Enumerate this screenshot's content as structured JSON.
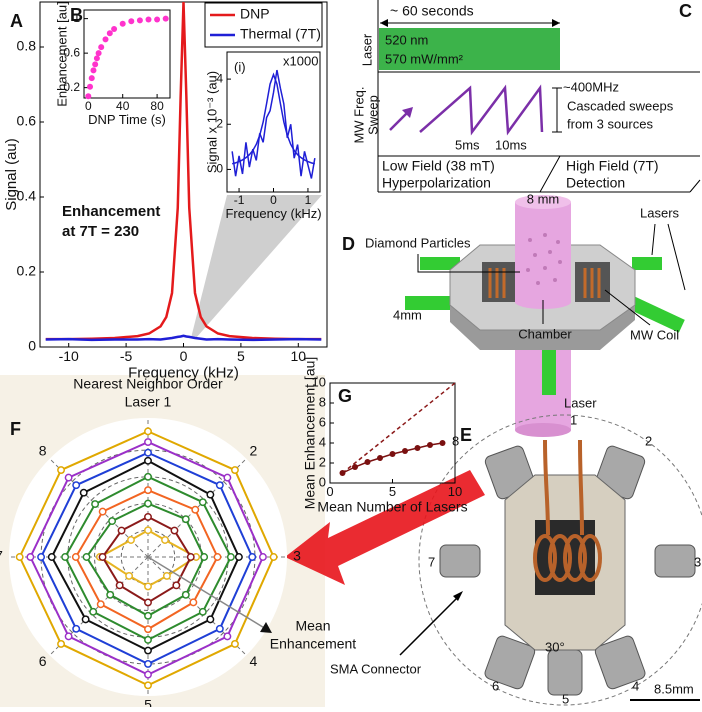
{
  "chart_data": [
    {
      "type": "line",
      "xlabel": "Frequency (kHz)",
      "ylabel": "Signal (au)",
      "x": [
        -12,
        -10,
        -8,
        -6,
        -4,
        -3,
        -2,
        -1.5,
        -1,
        -0.5,
        -0.25,
        0,
        0.25,
        0.5,
        1,
        1.5,
        2,
        3,
        4,
        6,
        8,
        10,
        12
      ],
      "series": [
        {
          "name": "DNP",
          "color": "#e41a1c",
          "values": [
            0.021,
            0.021,
            0.022,
            0.024,
            0.029,
            0.036,
            0.055,
            0.08,
            0.144,
            0.371,
            0.667,
            0.92,
            0.667,
            0.371,
            0.144,
            0.08,
            0.055,
            0.036,
            0.029,
            0.024,
            0.022,
            0.021,
            0.021
          ]
        },
        {
          "name": "Thermal (7T)",
          "color": "#1f1fd6",
          "values": [
            0.02,
            0.021,
            0.019,
            0.02,
            0.02,
            0.021,
            0.02,
            0.022,
            0.024,
            0.027,
            0.028,
            0.03,
            0.028,
            0.027,
            0.024,
            0.022,
            0.02,
            0.021,
            0.02,
            0.019,
            0.02,
            0.021,
            0.02
          ]
        }
      ],
      "xlim": [
        -12.5,
        12.5
      ],
      "xticks": [
        -10,
        -5,
        0,
        5,
        10
      ],
      "ylim": [
        0,
        0.92
      ],
      "yticks": [
        0,
        0.2,
        0.4,
        0.6,
        0.8
      ],
      "legend": true,
      "annotations": [
        "Enhancement",
        "at 7T = 230"
      ]
    },
    {
      "type": "scatter",
      "xlabel": "DNP Time (s)",
      "ylabel": "Enhancement [au]",
      "x": [
        0,
        2,
        4,
        6,
        8,
        10,
        12,
        15,
        20,
        25,
        30,
        40,
        50,
        60,
        70,
        80,
        90
      ],
      "series": [
        {
          "color": "#ff33cc",
          "values": [
            0.1,
            0.21,
            0.31,
            0.4,
            0.47,
            0.54,
            0.6,
            0.67,
            0.76,
            0.83,
            0.88,
            0.94,
            0.97,
            0.98,
            0.99,
            0.99,
            1.0
          ]
        }
      ],
      "xlim": [
        -5,
        95
      ],
      "xticks": [
        0,
        40,
        80
      ],
      "ylim": [
        0.08,
        1.1
      ],
      "yticks": [
        0.2,
        0.6,
        1
      ]
    },
    {
      "type": "line",
      "xlabel": "Frequency (kHz)",
      "ylabel": "Signal x 10⁻³ (au)",
      "x": [
        -1.2,
        -1.1,
        -1.0,
        -0.9,
        -0.8,
        -0.7,
        -0.6,
        -0.5,
        -0.4,
        -0.3,
        -0.2,
        -0.1,
        0,
        0.1,
        0.2,
        0.3,
        0.4,
        0.5,
        0.6,
        0.7,
        0.8,
        0.9,
        1.0,
        1.1,
        1.2
      ],
      "series": [
        {
          "color": "#1f1fd6",
          "values": [
            0.8,
            -0.3,
            0.6,
            -0.2,
            1.2,
            0.1,
            0.9,
            0.4,
            1.6,
            1.2,
            2.3,
            2.6,
            3.4,
            4.4,
            3.6,
            2.9,
            1.4,
            2.0,
            0.5,
            1.1,
            -0.3,
            0.8,
            0.2,
            -0.4,
            0.5
          ]
        },
        {
          "color": "#1f1fd6",
          "values": [
            0.25,
            0.29,
            0.35,
            0.42,
            0.52,
            0.65,
            0.84,
            1.11,
            1.51,
            2.1,
            2.92,
            3.78,
            4.2,
            3.78,
            2.92,
            2.1,
            1.51,
            1.11,
            0.84,
            0.65,
            0.52,
            0.42,
            0.35,
            0.29,
            0.25
          ]
        }
      ],
      "xlim": [
        -1.35,
        1.35
      ],
      "xticks": [
        -1,
        0,
        1
      ],
      "ylim": [
        -1,
        5.2
      ],
      "yticks": [
        0,
        2,
        4
      ],
      "annotations": [
        "(i)",
        "x1000"
      ]
    },
    {
      "type": "line",
      "xlabel": "Mean Number of Lasers",
      "ylabel": "Mean Enhancement [au]",
      "series": [
        {
          "color": "#8b1a1a",
          "dashed": true,
          "x": [
            1,
            10
          ],
          "values": [
            1,
            10
          ]
        },
        {
          "color": "#7a1010",
          "markers": true,
          "x": [
            1,
            2,
            3,
            4,
            5,
            6,
            7,
            8,
            9
          ],
          "values": [
            1,
            1.6,
            2.1,
            2.5,
            2.9,
            3.2,
            3.5,
            3.8,
            4.0
          ]
        }
      ],
      "xlim": [
        0,
        10
      ],
      "xticks": [
        0,
        5,
        10
      ],
      "ylim": [
        0,
        10
      ],
      "yticks": [
        0,
        2,
        4,
        6,
        8,
        10
      ]
    },
    {
      "type": "radar",
      "title": "Nearest Neighbor Order",
      "subtitle": "Laser 1",
      "categories": [
        null,
        "2",
        "3",
        "4",
        "5",
        "6",
        "7",
        "8"
      ],
      "rlim": [
        0,
        5.2
      ],
      "rticks": [
        1,
        2,
        3,
        4
      ],
      "annotations": [
        "Mean",
        "Enhancement"
      ],
      "series": [
        {
          "color": "#e6b422",
          "values": [
            1.0,
            0.9,
            1.8,
            1.0,
            1.1,
            1.0,
            1.8,
            0.9
          ]
        },
        {
          "color": "#8b1a1a",
          "values": [
            1.5,
            1.4,
            1.6,
            1.5,
            1.7,
            1.5,
            1.7,
            1.4
          ]
        },
        {
          "color": "#2e8b2e",
          "values": [
            2.0,
            2.0,
            2.1,
            2.0,
            2.2,
            2.0,
            2.3,
            1.9
          ]
        },
        {
          "color": "#f26522",
          "values": [
            2.5,
            2.5,
            2.6,
            2.4,
            2.7,
            2.5,
            2.7,
            2.4
          ]
        },
        {
          "color": "#2e8b2e",
          "values": [
            3.0,
            2.9,
            3.1,
            2.9,
            3.1,
            2.9,
            3.1,
            2.8
          ]
        },
        {
          "color": "#111111",
          "values": [
            3.6,
            3.3,
            3.4,
            3.3,
            3.5,
            3.3,
            3.6,
            3.4
          ]
        },
        {
          "color": "#1f3fd6",
          "values": [
            3.9,
            3.8,
            3.9,
            3.8,
            4.0,
            3.8,
            4.0,
            3.8
          ]
        },
        {
          "color": "#9b30c8",
          "values": [
            4.3,
            4.2,
            4.3,
            4.2,
            4.4,
            4.2,
            4.4,
            4.2
          ]
        },
        {
          "color": "#e0a800",
          "values": [
            4.7,
            4.6,
            4.7,
            4.6,
            4.8,
            4.6,
            4.8,
            4.6
          ]
        }
      ]
    }
  ],
  "panel_labels": [
    "A",
    "B",
    "C",
    "D",
    "E",
    "F",
    "G"
  ],
  "diagram_c": {
    "duration": "~ 60 seconds",
    "laser_label": "Laser",
    "wavelength": "520 nm",
    "power": "570 mW/mm²",
    "sweep_label_1": "MW Freq.",
    "sweep_label_2": "Sweep",
    "bandwidth": "~400MHz",
    "sweep_note_1": "Cascaded sweeps",
    "sweep_note_2": "from 3 sources",
    "t1": "5ms",
    "t2": "10ms",
    "low_field_1": "Low Field (38 mT)",
    "low_field_2": "Hyperpolarization",
    "high_field_1": "High Field (7T)",
    "high_field_2": "Detection"
  },
  "diagram_d": {
    "diameter": "8 mm",
    "lasers": "Lasers",
    "particles": "Diamond Particles",
    "width": "4mm",
    "chamber": "Chamber",
    "coil": "MW Coil",
    "laser1_a": "Laser",
    "laser1_b": "1"
  },
  "diagram_e": {
    "ports": [
      "8",
      "2",
      "7",
      "3",
      "6",
      "5",
      "4"
    ],
    "angle": "30°",
    "scale": "8.5mm",
    "connector": "SMA Connector"
  }
}
